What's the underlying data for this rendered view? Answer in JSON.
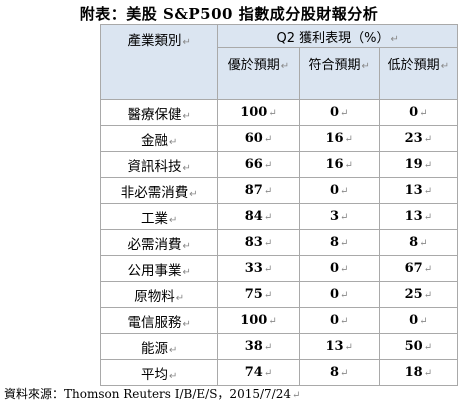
{
  "title": "附表：美股 S&P500 指數成分股財報分析",
  "header": {
    "category": "產業類別",
    "group": "Q2 獲利表現（%）",
    "columns": [
      "優於預期",
      "符合預期",
      "低於預期"
    ]
  },
  "rows": [
    {
      "category": "醫療保健",
      "beat": "100",
      "meet": "0",
      "miss": "0"
    },
    {
      "category": "金融",
      "beat": "60",
      "meet": "16",
      "miss": "23"
    },
    {
      "category": "資訊科技",
      "beat": "66",
      "meet": "16",
      "miss": "19"
    },
    {
      "category": "非必需消費",
      "beat": "87",
      "meet": "0",
      "miss": "13"
    },
    {
      "category": "工業",
      "beat": "84",
      "meet": "3",
      "miss": "13"
    },
    {
      "category": "必需消費",
      "beat": "83",
      "meet": "8",
      "miss": "8"
    },
    {
      "category": "公用事業",
      "beat": "33",
      "meet": "0",
      "miss": "67"
    },
    {
      "category": "原物料",
      "beat": "75",
      "meet": "0",
      "miss": "25"
    },
    {
      "category": "電信服務",
      "beat": "100",
      "meet": "0",
      "miss": "0"
    },
    {
      "category": "能源",
      "beat": "38",
      "meet": "13",
      "miss": "50"
    },
    {
      "category": "平均",
      "beat": "74",
      "meet": "8",
      "miss": "18"
    }
  ],
  "source": "資料來源：Thomson Reuters I/B/E/S，2015/7/24",
  "colors": {
    "header_bg": "#dbe5f1",
    "border": "#a9a9a9"
  }
}
